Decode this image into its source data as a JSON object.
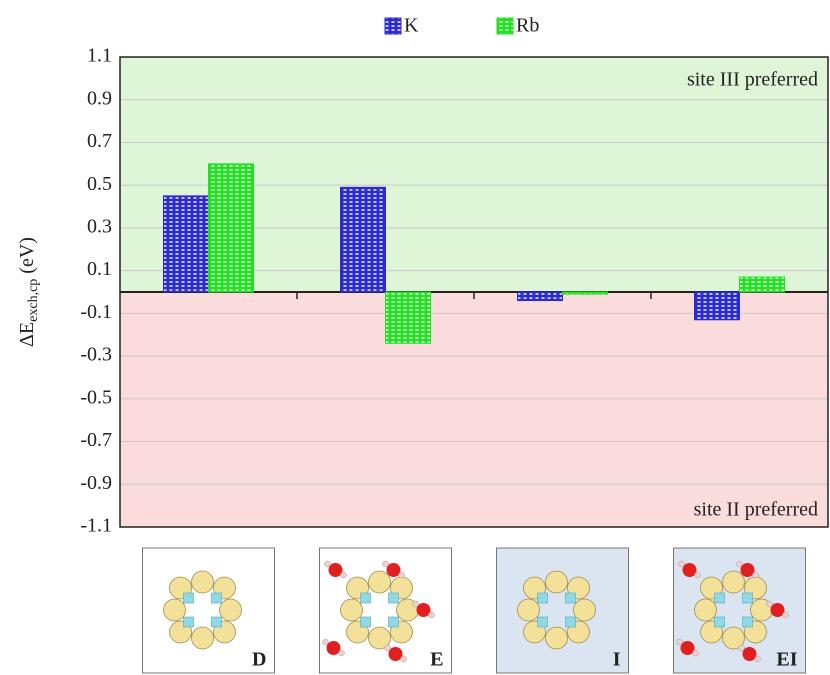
{
  "chart_data": {
    "type": "bar",
    "categories": [
      "D",
      "E",
      "I",
      "EI"
    ],
    "series": [
      {
        "name": "K",
        "color": "#2a2ad0",
        "values": [
          0.45,
          0.49,
          -0.04,
          -0.13
        ]
      },
      {
        "name": "Rb",
        "color": "#22e022",
        "values": [
          0.6,
          -0.24,
          -0.01,
          0.07
        ]
      }
    ],
    "ylabel": [
      "ΔE",
      "exch,cp",
      "(eV)"
    ],
    "ylim": [
      -1.1,
      1.1
    ],
    "yticks": [
      -1.1,
      -0.9,
      -0.7,
      -0.5,
      -0.3,
      -0.1,
      0.1,
      0.3,
      0.5,
      0.7,
      0.9,
      1.1
    ],
    "grid": true,
    "annotations": [
      "site III preferred",
      "site II preferred"
    ],
    "legend": "top"
  }
}
